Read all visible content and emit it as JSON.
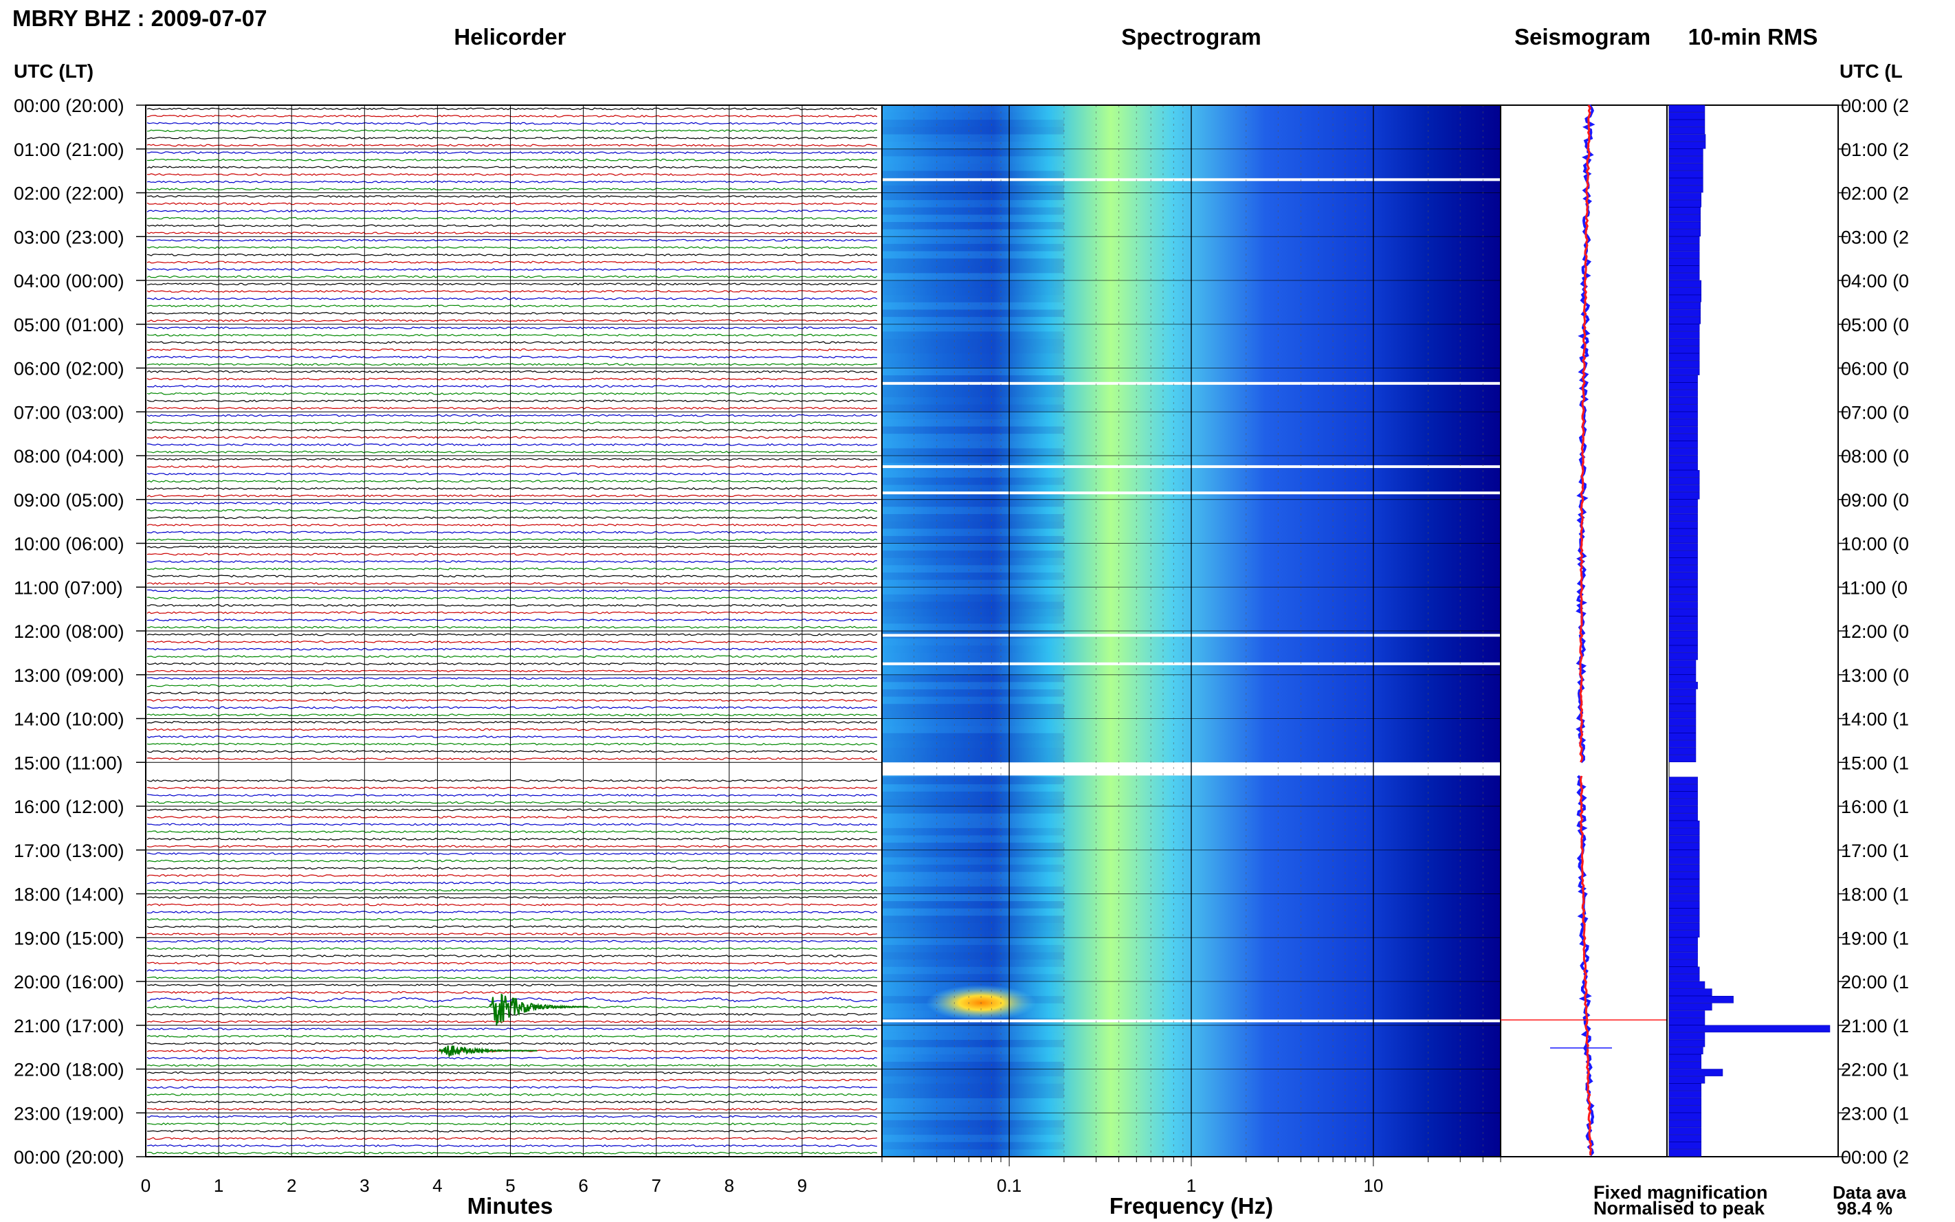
{
  "header": {
    "station_title": "MBRY BHZ : 2009-07-07",
    "panel_helicorder": "Helicorder",
    "panel_spectrogram": "Spectrogram",
    "panel_seismogram": "Seismogram",
    "panel_rms": "10-min RMS",
    "utc_lt_left": "UTC (LT)",
    "utc_lt_right": "UTC (L"
  },
  "footer": {
    "xlabel_minutes": "Minutes",
    "xlabel_frequency": "Frequency (Hz)",
    "legend_fixed": "Fixed magnification",
    "legend_normalised": "Normalised to peak",
    "data_availability_label": "Data ava",
    "data_availability_value": "98.4 %"
  },
  "colors": {
    "trace_cycle": [
      "#000000",
      "#cc0000",
      "#0000cc",
      "#008800"
    ],
    "fixed_magnification": "#1a1aff",
    "normalised_to_peak": "#ff1a1a",
    "rms_bar": "#1010ee",
    "spectrogram_low": "#000088",
    "spectrogram_high": "#ffff66"
  },
  "chart_data": [
    {
      "type": "line",
      "name": "helicorder",
      "title": "Helicorder",
      "xlabel": "Minutes",
      "x_ticks": [
        0,
        1,
        2,
        3,
        4,
        5,
        6,
        7,
        8,
        9
      ],
      "xlim": [
        0,
        10
      ],
      "lines_per_hour": 6,
      "row_labels_left": [
        "00:00 (20:00)",
        "01:00 (21:00)",
        "02:00 (22:00)",
        "03:00 (23:00)",
        "04:00 (00:00)",
        "05:00 (01:00)",
        "06:00 (02:00)",
        "07:00 (03:00)",
        "08:00 (04:00)",
        "09:00 (05:00)",
        "10:00 (06:00)",
        "11:00 (07:00)",
        "12:00 (08:00)",
        "13:00 (09:00)",
        "14:00 (10:00)",
        "15:00 (11:00)",
        "16:00 (12:00)",
        "17:00 (13:00)",
        "18:00 (14:00)",
        "19:00 (15:00)",
        "20:00 (16:00)",
        "21:00 (17:00)",
        "22:00 (18:00)",
        "23:00 (19:00)",
        "00:00 (20:00)"
      ],
      "row_labels_right": [
        "00:00 (2",
        "01:00 (2",
        "02:00 (2",
        "03:00 (2",
        "04:00 (0",
        "05:00 (0",
        "06:00 (0",
        "07:00 (0",
        "08:00 (0",
        "09:00 (0",
        "10:00 (0",
        "11:00 (0",
        "12:00 (0",
        "13:00 (0",
        "14:00 (1",
        "15:00 (1",
        "16:00 (1",
        "17:00 (1",
        "18:00 (1",
        "19:00 (1",
        "20:00 (1",
        "21:00 (1",
        "22:00 (1",
        "23:00 (1",
        "00:00 (2"
      ],
      "events": [
        {
          "time_h": 20.33,
          "minute": 5.0,
          "duration_min": 1.0,
          "amplitude": 1.0
        },
        {
          "time_h": 21.33,
          "minute": 4.3,
          "duration_min": 1.0,
          "amplitude": 0.35
        }
      ],
      "data_gap": {
        "start_h": 15.0,
        "end_h": 15.3
      }
    },
    {
      "type": "heatmap",
      "name": "spectrogram",
      "title": "Spectrogram",
      "xlabel": "Frequency (Hz)",
      "x_scale": "log",
      "xlim": [
        0.02,
        50
      ],
      "x_ticks": [
        "0.1",
        "1",
        "10"
      ],
      "peak_frequency_hz": 0.3,
      "gap_lines_h": [
        1.7,
        6.35,
        8.25,
        8.85,
        12.1,
        12.75,
        20.9
      ]
    },
    {
      "type": "line",
      "name": "seismogram",
      "title": "Seismogram",
      "series": [
        {
          "name": "Fixed magnification"
        },
        {
          "name": "Normalised to peak"
        }
      ]
    },
    {
      "type": "bar",
      "name": "rms",
      "title": "10-min RMS",
      "orientation": "horizontal",
      "values": [
        1.0,
        1.0,
        1.0,
        1.0,
        1.02,
        1.02,
        0.95,
        0.95,
        0.95,
        0.95,
        0.95,
        0.95,
        0.9,
        0.9,
        0.88,
        0.88,
        0.88,
        0.88,
        0.85,
        0.85,
        0.85,
        0.85,
        0.85,
        0.85,
        0.9,
        0.9,
        0.9,
        0.88,
        0.88,
        0.88,
        0.85,
        0.85,
        0.85,
        0.85,
        0.85,
        0.85,
        0.85,
        0.8,
        0.8,
        0.8,
        0.8,
        0.8,
        0.8,
        0.8,
        0.8,
        0.8,
        0.8,
        0.8,
        0.8,
        0.8,
        0.85,
        0.85,
        0.85,
        0.85,
        0.8,
        0.8,
        0.8,
        0.8,
        0.8,
        0.8,
        0.8,
        0.8,
        0.8,
        0.8,
        0.8,
        0.8,
        0.8,
        0.8,
        0.8,
        0.8,
        0.8,
        0.8,
        0.8,
        0.8,
        0.8,
        0.8,
        0.75,
        0.75,
        0.75,
        0.8,
        0.75,
        0.75,
        0.75,
        0.75,
        0.75,
        0.75,
        0.75,
        0.75,
        0.75,
        0.75,
        0.0,
        0.0,
        0.8,
        0.8,
        0.8,
        0.8,
        0.8,
        0.8,
        0.85,
        0.85,
        0.85,
        0.85,
        0.85,
        0.85,
        0.85,
        0.85,
        0.85,
        0.85,
        0.85,
        0.85,
        0.85,
        0.85,
        0.85,
        0.85,
        0.8,
        0.8,
        0.8,
        0.8,
        0.85,
        0.85,
        1.0,
        1.2,
        1.8,
        1.2,
        1.0,
        1.0,
        4.5,
        1.0,
        1.0,
        0.95,
        0.9,
        0.9,
        1.5,
        1.0,
        0.9,
        0.9,
        0.9,
        0.9,
        0.9,
        0.9,
        0.9,
        0.9,
        0.9,
        0.9
      ]
    }
  ]
}
